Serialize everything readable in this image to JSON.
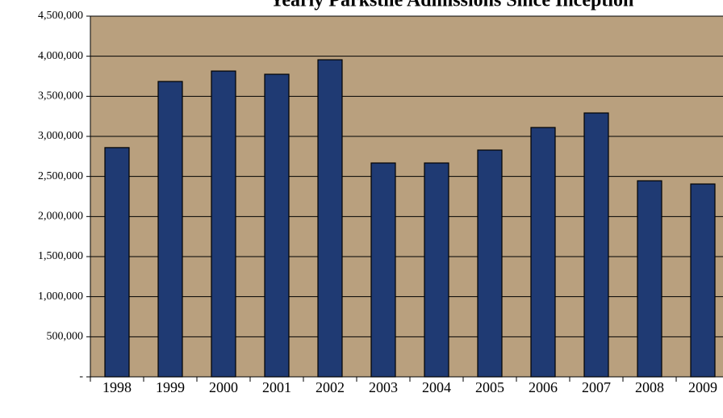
{
  "chart_data": {
    "type": "bar",
    "title": "Yearly Parkstile Admissions Since Inception",
    "categories": [
      "1998",
      "1999",
      "2000",
      "2001",
      "2002",
      "2003",
      "2004",
      "2005",
      "2006",
      "2007",
      "2008",
      "2009"
    ],
    "values": [
      2860000,
      3685000,
      3815000,
      3775000,
      3956000,
      2668000,
      2668000,
      2829000,
      3111000,
      3292000,
      2446000,
      2406000
    ],
    "color": "#1f3a73",
    "ylim": [
      0,
      4500000
    ],
    "yticks": [
      {
        "value": 0,
        "label": "-"
      },
      {
        "value": 500000,
        "label": "500,000"
      },
      {
        "value": 1000000,
        "label": "1,000,000"
      },
      {
        "value": 1500000,
        "label": "1,500,000"
      },
      {
        "value": 2000000,
        "label": "2,000,000"
      },
      {
        "value": 2500000,
        "label": "2,500,000"
      },
      {
        "value": 3000000,
        "label": "3,000,000"
      },
      {
        "value": 3500000,
        "label": "3,500,000"
      },
      {
        "value": 4000000,
        "label": "4,000,000"
      },
      {
        "value": 4500000,
        "label": "4,500,000"
      }
    ],
    "grid": true
  }
}
